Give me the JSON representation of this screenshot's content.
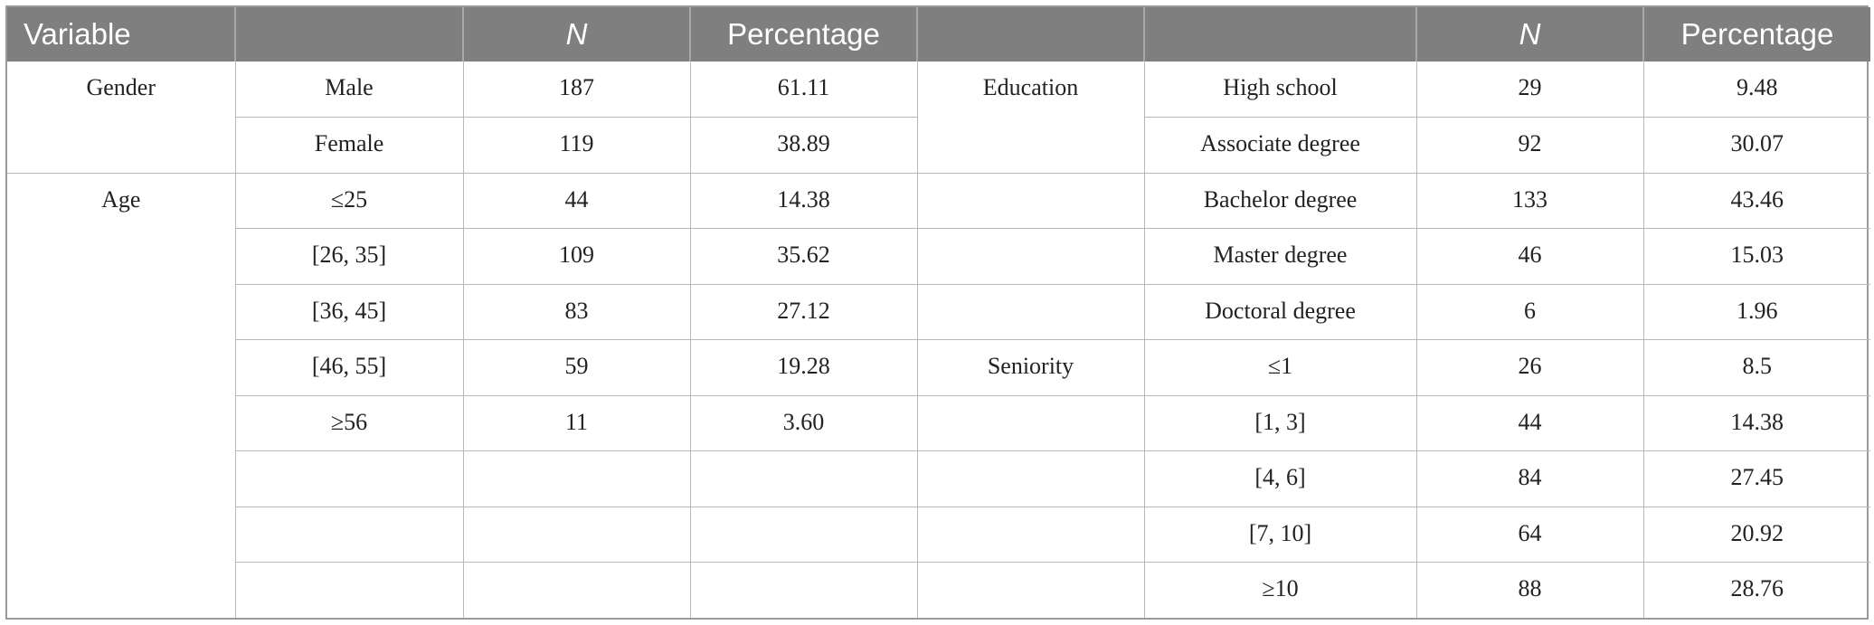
{
  "header": [
    "Variable",
    "",
    "N",
    "Percentage",
    "",
    "",
    "N",
    "Percentage"
  ],
  "rows": [
    {
      "v1": "Gender",
      "c1": "Male",
      "n1": "187",
      "p1": "61.11",
      "v2": "Education",
      "c2": "High school",
      "n2": "29",
      "p2": "9.48"
    },
    {
      "v1": "",
      "c1": "Female",
      "n1": "119",
      "p1": "38.89",
      "v2": "",
      "c2": "Associate degree",
      "n2": "92",
      "p2": "30.07"
    },
    {
      "v1": "Age",
      "c1": "≤25",
      "n1": "44",
      "p1": "14.38",
      "v2": "",
      "c2": "Bachelor degree",
      "n2": "133",
      "p2": "43.46"
    },
    {
      "v1": "",
      "c1": "[26, 35]",
      "n1": "109",
      "p1": "35.62",
      "v2": "",
      "c2": "Master degree",
      "n2": "46",
      "p2": "15.03"
    },
    {
      "v1": "",
      "c1": "[36, 45]",
      "n1": "83",
      "p1": "27.12",
      "v2": "",
      "c2": "Doctoral degree",
      "n2": "6",
      "p2": "1.96"
    },
    {
      "v1": "",
      "c1": "[46, 55]",
      "n1": "59",
      "p1": "19.28",
      "v2": "Seniority",
      "c2": "≤1",
      "n2": "26",
      "p2": "8.5"
    },
    {
      "v1": "",
      "c1": "≥56",
      "n1": "11",
      "p1": "3.60",
      "v2": "",
      "c2": "[1, 3]",
      "n2": "44",
      "p2": "14.38"
    },
    {
      "v1": "",
      "c1": "",
      "n1": "",
      "p1": "",
      "v2": "",
      "c2": "[4, 6]",
      "n2": "84",
      "p2": "27.45"
    },
    {
      "v1": "",
      "c1": "",
      "n1": "",
      "p1": "",
      "v2": "",
      "c2": "[7, 10]",
      "n2": "64",
      "p2": "20.92"
    },
    {
      "v1": "",
      "c1": "",
      "n1": "",
      "p1": "",
      "v2": "",
      "c2": "≥10",
      "n2": "88",
      "p2": "28.76"
    }
  ]
}
